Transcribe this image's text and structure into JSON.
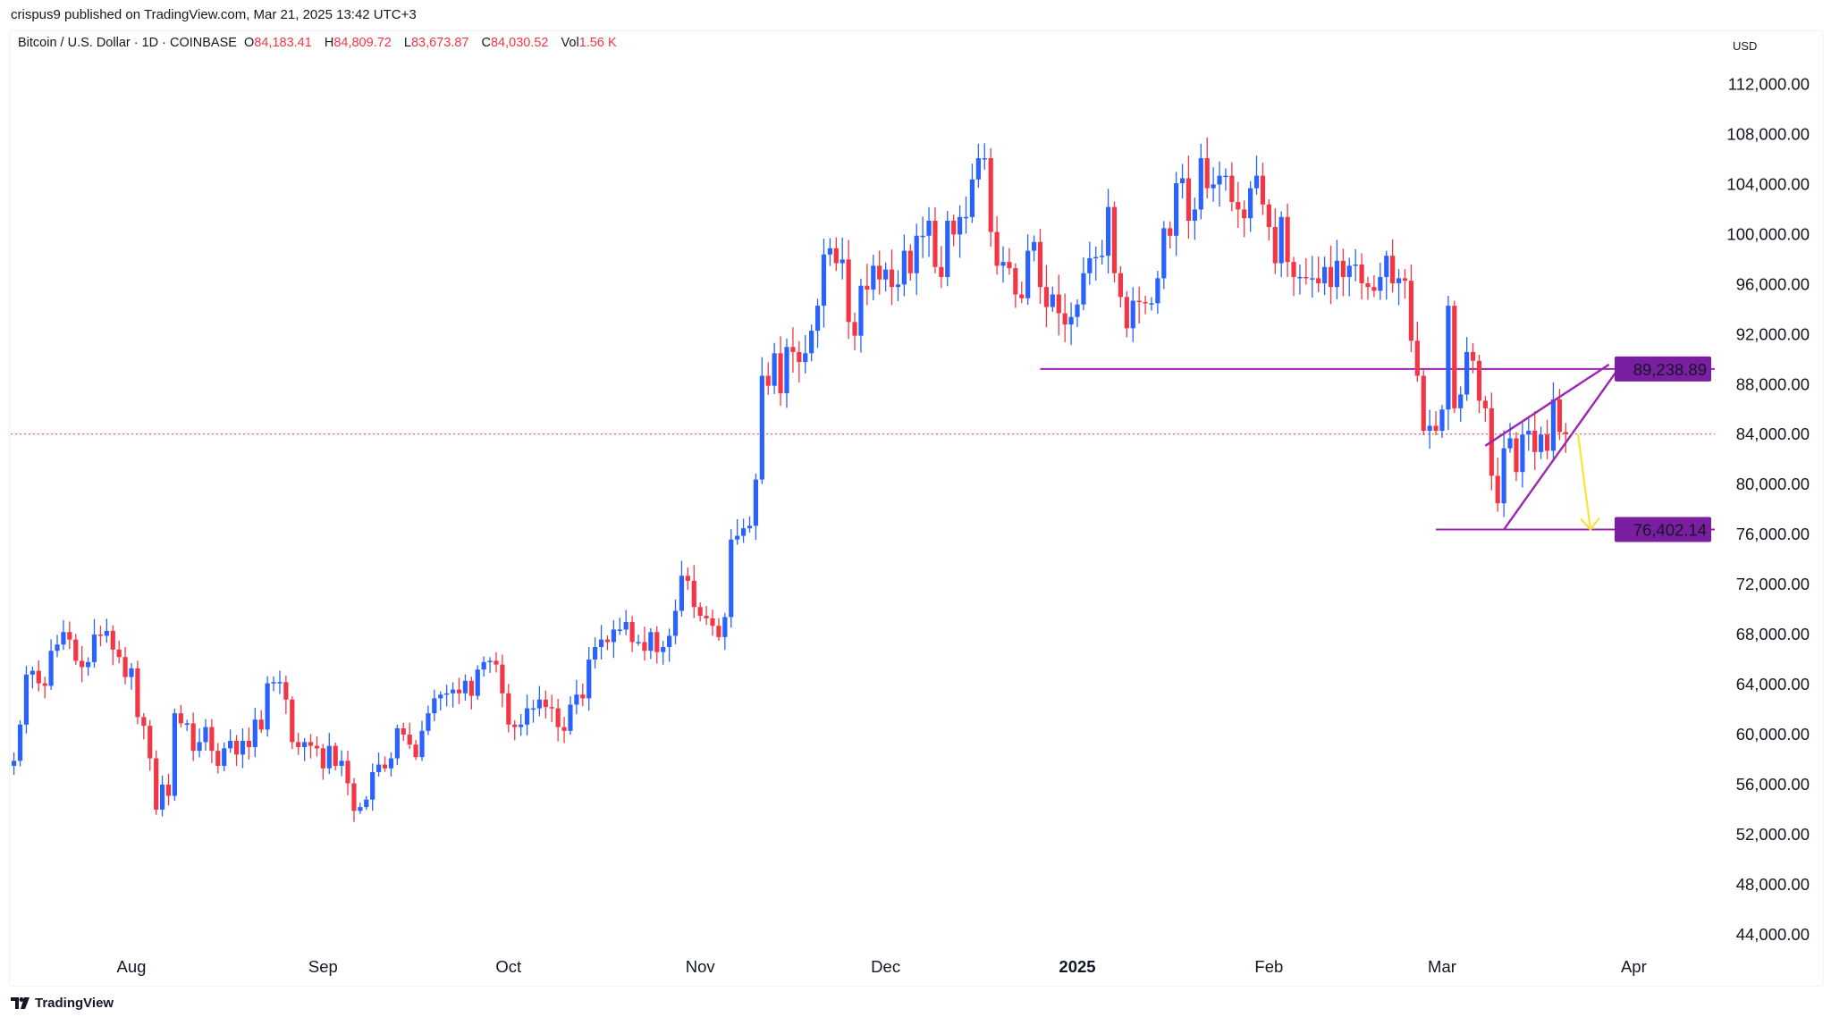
{
  "header": {
    "published": "crispus9 published on TradingView.com, Mar 21, 2025 13:42 UTC+3"
  },
  "legend": {
    "symbol": "Bitcoin / U.S. Dollar · 1D · COINBASE",
    "o_label": "O",
    "o": "84,183.41",
    "h_label": "H",
    "h": "84,809.72",
    "l_label": "L",
    "l": "83,673.87",
    "c_label": "C",
    "c": "84,030.52",
    "vol_label": "Vol",
    "vol": "1.56 K"
  },
  "currency": "USD",
  "footer": {
    "brand": "TradingView"
  },
  "colors": {
    "up": "#2962ff",
    "down": "#f23645",
    "pattern": "#9c27b0",
    "badge": "#7b1fa2",
    "arrow": "#f7e436",
    "last_price_line": "#f23645"
  },
  "chart_data": {
    "type": "candlestick",
    "title": "",
    "xlabel": "",
    "ylabel": "",
    "ylim": [
      42000,
      114000
    ],
    "grid": false,
    "y_ticks": [
      "112,000.00",
      "108,000.00",
      "104,000.00",
      "100,000.00",
      "96,000.00",
      "92,000.00",
      "88,000.00",
      "84,000.00",
      "80,000.00",
      "76,000.00",
      "72,000.00",
      "68,000.00",
      "64,000.00",
      "60,000.00",
      "56,000.00",
      "52,000.00",
      "48,000.00",
      "44,000.00"
    ],
    "x_ticks": [
      {
        "label": "Aug",
        "date": "2024-08-01",
        "bold": false
      },
      {
        "label": "Sep",
        "date": "2024-09-01",
        "bold": false
      },
      {
        "label": "Oct",
        "date": "2024-10-01",
        "bold": false
      },
      {
        "label": "Nov",
        "date": "2024-11-01",
        "bold": false
      },
      {
        "label": "Dec",
        "date": "2024-12-01",
        "bold": false
      },
      {
        "label": "2025",
        "date": "2025-01-01",
        "bold": true
      },
      {
        "label": "Feb",
        "date": "2025-02-01",
        "bold": false
      },
      {
        "label": "Mar",
        "date": "2025-03-01",
        "bold": false
      },
      {
        "label": "Apr",
        "date": "2025-04-01",
        "bold": false
      }
    ],
    "first_open": 57500,
    "daily_closes": [
      {
        "month": "2024-07",
        "first_day": 13,
        "closes": [
          57900,
          60800,
          64800,
          65100,
          64100,
          63900,
          66700,
          67200,
          68200,
          67600,
          65900,
          65400,
          65800,
          68000,
          67900,
          68300,
          66800,
          66200,
          64600
        ]
      },
      {
        "month": "2024-08",
        "first_day": 1,
        "closes": [
          65300,
          61400,
          60700,
          58100,
          54000,
          56000,
          55100,
          61700,
          60900,
          60900,
          58700,
          59400,
          60600,
          58700,
          57500,
          58900,
          59500,
          58400,
          59500,
          59000,
          61200,
          60400,
          64100,
          64200,
          64200,
          62800,
          59400,
          59000,
          59400,
          59100,
          58900
        ]
      },
      {
        "month": "2024-09",
        "first_day": 1,
        "closes": [
          57300,
          59100,
          57500,
          57900,
          56100,
          53900,
          54200,
          54800,
          57000,
          57600,
          57300,
          58100,
          60500,
          60000,
          59200,
          58200,
          60300,
          61700,
          62900,
          63200,
          63300,
          63600,
          63300,
          64300,
          63100,
          65200,
          65800,
          65900,
          65600,
          63300
        ]
      },
      {
        "month": "2024-10",
        "first_day": 1,
        "closes": [
          60800,
          60600,
          60800,
          62100,
          62100,
          62800,
          62200,
          62100,
          60600,
          60300,
          62400,
          63200,
          62900,
          66000,
          67000,
          67600,
          67400,
          68400,
          68400,
          69000,
          67400,
          67400,
          66700,
          68200,
          66600,
          67000,
          67900,
          69900,
          72700,
          72300,
          70200
        ]
      },
      {
        "month": "2024-11",
        "first_day": 1,
        "closes": [
          69500,
          69300,
          68700,
          67800,
          69400,
          75600,
          75900,
          76500,
          76700,
          80400,
          88700,
          87900,
          90500,
          87300,
          91000,
          90600,
          89800,
          90500,
          92300,
          94300,
          98400,
          98900,
          97700,
          98000,
          93000,
          91900,
          95900,
          95600,
          97500,
          96400
        ]
      },
      {
        "month": "2024-12",
        "first_day": 1,
        "closes": [
          97200,
          95800,
          96000,
          98700,
          96900,
          99900,
          99900,
          101100,
          97400,
          96600,
          101100,
          100000,
          101400,
          101400,
          104400,
          106100,
          106100,
          100200,
          97500,
          97800,
          97300,
          95200,
          94900,
          98700,
          99400,
          95800,
          94200,
          95200,
          93700,
          92800,
          93400
        ]
      },
      {
        "month": "2025-01",
        "first_day": 1,
        "closes": [
          94400,
          96900,
          98100,
          98200,
          98300,
          102200,
          96900,
          95000,
          92500,
          94700,
          94600,
          94500,
          94500,
          96500,
          100500,
          99900,
          104100,
          104500,
          101100,
          102000,
          106100,
          103700,
          104000,
          104700,
          104700,
          102600,
          102000,
          101300,
          103700,
          104700,
          102400
        ]
      },
      {
        "month": "2025-02",
        "first_day": 1,
        "closes": [
          100600,
          97700,
          101400,
          97800,
          96600,
          96600,
          96500,
          96500,
          96100,
          97400,
          95800,
          97900,
          96600,
          97500,
          97600,
          96100,
          95800,
          95500,
          96600,
          98300,
          96100,
          96500,
          96300,
          91500,
          88700,
          84300,
          84700,
          84300
        ]
      },
      {
        "month": "2025-03",
        "first_day": 1,
        "closes": [
          86000,
          94300,
          86100,
          87200,
          90600,
          89900,
          86700,
          86100,
          80700,
          78500,
          82900,
          83700,
          81000,
          84000,
          84300,
          82600,
          84000,
          82700,
          86800,
          84200,
          84030
        ]
      }
    ],
    "last_price": 84030.52,
    "annotations": {
      "horizontal_levels": [
        {
          "price": 89238.89,
          "label": "89,238.89",
          "from_date": "2024-12-26"
        },
        {
          "price": 76402.14,
          "label": "76,402.14",
          "from_date": "2025-02-28"
        }
      ],
      "wedge_upper": {
        "from": {
          "date": "2025-03-08",
          "price": 83100
        },
        "to": {
          "date": "2025-03-28",
          "price": 89600
        }
      },
      "wedge_lower": {
        "from": {
          "date": "2025-03-11",
          "price": 76402
        },
        "to": {
          "date": "2025-03-30",
          "price": 89600
        }
      },
      "arrow": {
        "from": {
          "date": "2025-03-23",
          "price": 84000
        },
        "to": {
          "date": "2025-03-25",
          "price": 76402
        }
      }
    }
  }
}
